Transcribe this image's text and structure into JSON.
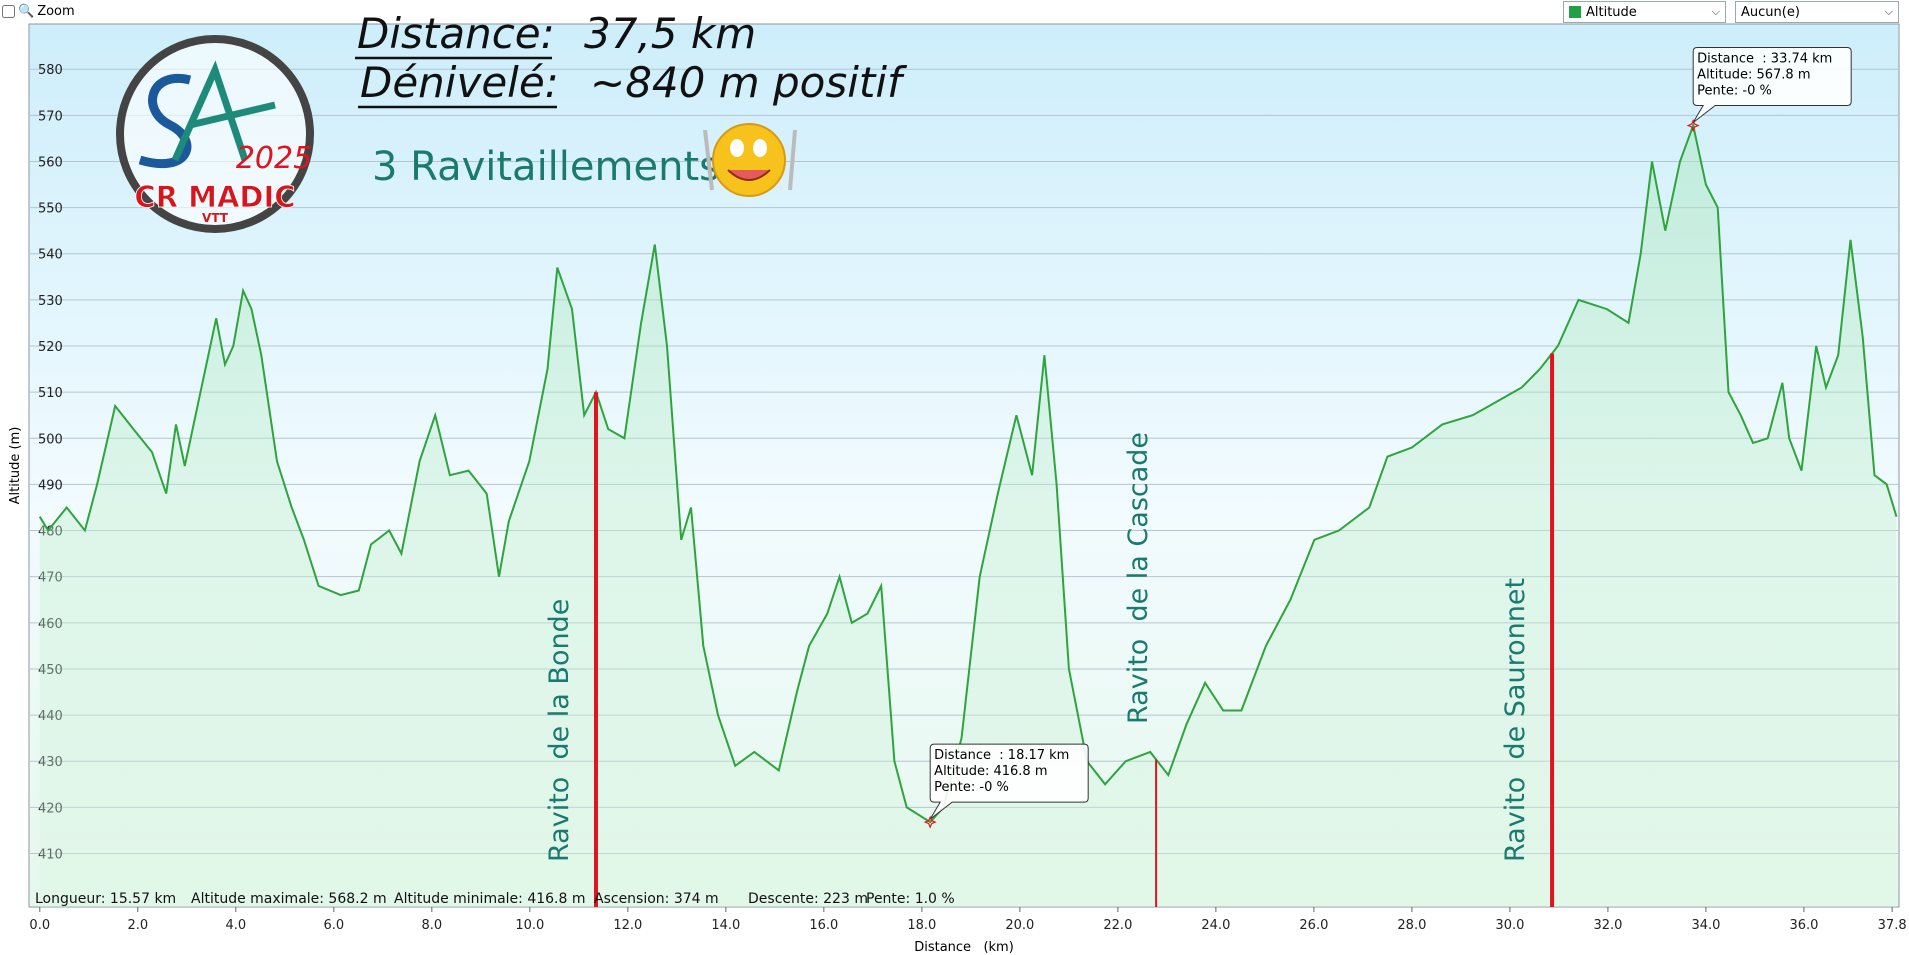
{
  "toolbar": {
    "zoom": "Zoom",
    "measure": "Altitude",
    "overlay": "Aucun(e)"
  },
  "header": {
    "lines": [
      {
        "label": "Distance:",
        "value": "37,5 km"
      },
      {
        "label": "Dénivelé:",
        "value": "~840 m positif"
      }
    ],
    "subtitle": "3 Ravitaillements",
    "logo": {
      "year": "2025",
      "club": "CR MADIC",
      "sub": "VTT"
    }
  },
  "chart_data": {
    "type": "line",
    "x_label": "Distance   (km)",
    "y_label": "Altitude (m)",
    "x": [
      0,
      0.17,
      0.55,
      0.92,
      1.17,
      1.54,
      1.91,
      2.29,
      2.58,
      2.78,
      2.96,
      3.28,
      3.6,
      3.78,
      3.95,
      4.15,
      4.32,
      4.52,
      4.84,
      5.14,
      5.39,
      5.69,
      6.14,
      6.51,
      6.76,
      7.13,
      7.38,
      7.75,
      8.07,
      8.37,
      8.75,
      9.12,
      9.37,
      9.57,
      9.99,
      10.36,
      10.56,
      10.86,
      11.11,
      11.35,
      11.6,
      11.93,
      12.27,
      12.55,
      12.8,
      13.09,
      13.29,
      13.54,
      13.84,
      14.19,
      14.58,
      15.08,
      15.45,
      15.7,
      16.07,
      16.32,
      16.57,
      16.89,
      17.17,
      17.44,
      17.69,
      18.17,
      18.44,
      18.81,
      19.18,
      19.55,
      19.93,
      20.25,
      20.5,
      20.75,
      21.0,
      21.37,
      21.74,
      22.16,
      22.66,
      23.03,
      23.4,
      23.78,
      24.15,
      24.52,
      25.02,
      25.52,
      26.01,
      26.51,
      27.13,
      27.5,
      28.0,
      28.62,
      29.24,
      29.74,
      30.24,
      30.61,
      30.98,
      31.4,
      31.98,
      32.42,
      32.67,
      32.9,
      33.17,
      33.47,
      33.74,
      34.0,
      34.24,
      34.46,
      34.71,
      34.96,
      35.26,
      35.56,
      35.7,
      35.95,
      36.25,
      36.45,
      36.7,
      36.95,
      37.2,
      37.44,
      37.69,
      37.89
    ],
    "series": [
      {
        "name": "Altitude",
        "color": "#2ea43c",
        "values": [
          483,
          480,
          485,
          480,
          490,
          507,
          502,
          497,
          488,
          503,
          494,
          510,
          526,
          516,
          520,
          532,
          528,
          518,
          495,
          485,
          478,
          468,
          466,
          467,
          477,
          480,
          475,
          495,
          505,
          492,
          493,
          488,
          470,
          482,
          495,
          515,
          537,
          528,
          505,
          510,
          502,
          500,
          525,
          542,
          520,
          478,
          485,
          455,
          440,
          429,
          432,
          428,
          445,
          455,
          462,
          470,
          460,
          462,
          468,
          430,
          420,
          416.8,
          420,
          435,
          470,
          488,
          505,
          492,
          518,
          490,
          450,
          430,
          425,
          430,
          432,
          427,
          438,
          447,
          441,
          441,
          455,
          465,
          478,
          480,
          485,
          496,
          498,
          503,
          505,
          508,
          511,
          515,
          520,
          530,
          528,
          525,
          540,
          560,
          545,
          560,
          567.8,
          555,
          550,
          510,
          505,
          499,
          500,
          512,
          500,
          493,
          520,
          511,
          518,
          543,
          522,
          492,
          490,
          483
        ]
      }
    ],
    "xlim": [
      -0.22,
      37.94
    ],
    "ylim": [
      398.4,
      589.8
    ],
    "xticks": [
      {
        "value": 0,
        "label": "0.0"
      },
      {
        "value": 2,
        "label": "2.0"
      },
      {
        "value": 4,
        "label": "4.0"
      },
      {
        "value": 6,
        "label": "6.0"
      },
      {
        "value": 8,
        "label": "8.0"
      },
      {
        "value": 10,
        "label": "10.0"
      },
      {
        "value": 12,
        "label": "12.0"
      },
      {
        "value": 14,
        "label": "14.0"
      },
      {
        "value": 16,
        "label": "16.0"
      },
      {
        "value": 18,
        "label": "18.0"
      },
      {
        "value": 20,
        "label": "20.0"
      },
      {
        "value": 22,
        "label": "22.0"
      },
      {
        "value": 24,
        "label": "24.0"
      },
      {
        "value": 26,
        "label": "26.0"
      },
      {
        "value": 28,
        "label": "28.0"
      },
      {
        "value": 30,
        "label": "30.0"
      },
      {
        "value": 32,
        "label": "32.0"
      },
      {
        "value": 34,
        "label": "34.0"
      },
      {
        "value": 36,
        "label": "36.0"
      },
      {
        "value": 37.8,
        "label": "37.8"
      }
    ],
    "yticks": [
      410,
      420,
      430,
      440,
      450,
      460,
      470,
      480,
      490,
      500,
      510,
      520,
      530,
      540,
      550,
      560,
      570,
      580
    ],
    "grid": true,
    "markers": [
      {
        "label": "Ravito  de la Bonde",
        "x": 11.35,
        "color": "#e0141e"
      },
      {
        "label": "Ravito  de la Cascade",
        "x": 22.78,
        "color": "#e0141e"
      },
      {
        "label": "Ravito  de Sauronnet",
        "x": 30.86,
        "color": "#e0141e"
      }
    ],
    "tooltips": [
      {
        "x": 18.17,
        "y": 416.8,
        "lines": [
          "Distance  : 18.17 km",
          "Altitude: 416.8 m",
          "Pente: -0 %"
        ]
      },
      {
        "x": 33.74,
        "y": 567.8,
        "lines": [
          "Distance  : 33.74 km",
          "Altitude: 567.8 m",
          "Pente: -0 %"
        ]
      }
    ],
    "stats": [
      "Longueur: 15.57 km",
      "Altitude maximale: 568.2 m",
      "Altitude minimale: 416.8 m",
      "Ascension: 374 m",
      "Descente: 223 m",
      "Pente: 1.0 %"
    ]
  }
}
